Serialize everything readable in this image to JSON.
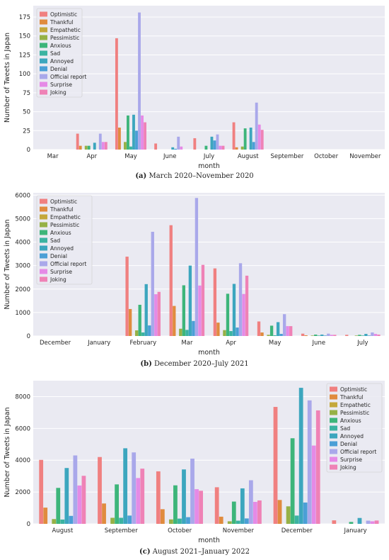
{
  "captions": [
    {
      "label": "(a)",
      "text": "March 2020–November 2020"
    },
    {
      "label": "(b)",
      "text": "December 2020–July 2021"
    },
    {
      "label": "(c)",
      "text": "August 2021–January 2022"
    }
  ],
  "colors": [
    "#f08080",
    "#e08b3e",
    "#c4a83b",
    "#96b146",
    "#3db57a",
    "#3bb3a1",
    "#3ca6be",
    "#4b9fd6",
    "#a9a8ea",
    "#e58ae6",
    "#ef82b6"
  ],
  "chart_data": [
    {
      "type": "bar",
      "xlabel": "month",
      "ylabel": "Number of Tweets in Japan",
      "ylim": [
        0,
        190
      ],
      "yticks": [
        0,
        25,
        50,
        75,
        100,
        125,
        150,
        175
      ],
      "grid": true,
      "legend_position": "top-left",
      "categories": [
        "Mar",
        "Apr",
        "May",
        "June",
        "July",
        "August",
        "September",
        "October",
        "November"
      ],
      "series": [
        {
          "name": "Optimistic",
          "values": [
            0,
            21,
            147,
            8,
            15,
            36,
            0,
            0,
            0
          ]
        },
        {
          "name": "Thankful",
          "values": [
            0,
            5,
            29,
            0,
            0,
            3,
            0,
            0,
            0
          ]
        },
        {
          "name": "Empathetic",
          "values": [
            0,
            0,
            0,
            0,
            0,
            0,
            0,
            0,
            0
          ]
        },
        {
          "name": "Pessimistic",
          "values": [
            0,
            5,
            10,
            0,
            0,
            4,
            0,
            0,
            0
          ]
        },
        {
          "name": "Anxious",
          "values": [
            0,
            5,
            45,
            0,
            5,
            28,
            0,
            0,
            0
          ]
        },
        {
          "name": "Sad",
          "values": [
            0,
            0,
            4,
            0,
            0,
            0,
            0,
            0,
            0
          ]
        },
        {
          "name": "Annoyed",
          "values": [
            0,
            9,
            46,
            3,
            17,
            29,
            0,
            0,
            0
          ]
        },
        {
          "name": "Denial",
          "values": [
            0,
            0,
            25,
            1,
            12,
            10,
            0,
            0,
            0
          ]
        },
        {
          "name": "Official report",
          "values": [
            0,
            21,
            181,
            17,
            20,
            62,
            0,
            0,
            0
          ]
        },
        {
          "name": "Surprise",
          "values": [
            0,
            10,
            45,
            4,
            5,
            33,
            0,
            0,
            0
          ]
        },
        {
          "name": "Joking",
          "values": [
            0,
            10,
            36,
            0,
            5,
            26,
            0,
            0,
            0
          ]
        }
      ]
    },
    {
      "type": "bar",
      "xlabel": "month",
      "ylabel": "Number of Tweets in Japan",
      "ylim": [
        0,
        6100
      ],
      "yticks": [
        0,
        1000,
        2000,
        3000,
        4000,
        5000,
        6000
      ],
      "grid": true,
      "legend_position": "top-left",
      "categories": [
        "December",
        "January",
        "February",
        "Mar",
        "Apr",
        "May",
        "June",
        "July"
      ],
      "series": [
        {
          "name": "Optimistic",
          "values": [
            0,
            0,
            3380,
            4720,
            2880,
            620,
            100,
            50
          ]
        },
        {
          "name": "Thankful",
          "values": [
            0,
            0,
            1150,
            1280,
            570,
            150,
            30,
            0
          ]
        },
        {
          "name": "Empathetic",
          "values": [
            0,
            0,
            0,
            0,
            0,
            0,
            0,
            0
          ]
        },
        {
          "name": "Pessimistic",
          "values": [
            0,
            0,
            240,
            310,
            250,
            50,
            20,
            20
          ]
        },
        {
          "name": "Anxious",
          "values": [
            0,
            0,
            1330,
            2160,
            1800,
            440,
            60,
            50
          ]
        },
        {
          "name": "Sad",
          "values": [
            0,
            0,
            150,
            260,
            210,
            30,
            20,
            20
          ]
        },
        {
          "name": "Annoyed",
          "values": [
            0,
            0,
            2210,
            3000,
            2220,
            590,
            60,
            90
          ]
        },
        {
          "name": "Denial",
          "values": [
            0,
            0,
            450,
            640,
            360,
            90,
            20,
            20
          ]
        },
        {
          "name": "Official report",
          "values": [
            0,
            0,
            4440,
            5880,
            3100,
            930,
            100,
            150
          ]
        },
        {
          "name": "Surprise",
          "values": [
            0,
            0,
            1780,
            2150,
            1790,
            420,
            50,
            90
          ]
        },
        {
          "name": "Joking",
          "values": [
            0,
            0,
            1880,
            3030,
            2570,
            420,
            50,
            60
          ]
        }
      ]
    },
    {
      "type": "bar",
      "xlabel": "month",
      "ylabel": "Number of Tweets in Japan",
      "ylim": [
        0,
        9000
      ],
      "yticks": [
        0,
        2000,
        4000,
        6000,
        8000
      ],
      "grid": true,
      "legend_position": "top-right",
      "categories": [
        "August",
        "September",
        "October",
        "November",
        "December",
        "January"
      ],
      "series": [
        {
          "name": "Optimistic",
          "values": [
            4020,
            4200,
            3300,
            2300,
            7350,
            220
          ]
        },
        {
          "name": "Thankful",
          "values": [
            1020,
            1280,
            920,
            450,
            1500,
            0
          ]
        },
        {
          "name": "Empathetic",
          "values": [
            0,
            0,
            0,
            0,
            0,
            0
          ]
        },
        {
          "name": "Pessimistic",
          "values": [
            300,
            380,
            280,
            160,
            1100,
            0
          ]
        },
        {
          "name": "Anxious",
          "values": [
            2260,
            2480,
            2420,
            1400,
            5380,
            120
          ]
        },
        {
          "name": "Sad",
          "values": [
            270,
            380,
            330,
            200,
            520,
            0
          ]
        },
        {
          "name": "Annoyed",
          "values": [
            3510,
            4750,
            3420,
            2230,
            8550,
            370
          ]
        },
        {
          "name": "Denial",
          "values": [
            500,
            520,
            420,
            340,
            1340,
            0
          ]
        },
        {
          "name": "Official report",
          "values": [
            4300,
            4490,
            4100,
            2740,
            7760,
            200
          ]
        },
        {
          "name": "Surprise",
          "values": [
            2410,
            2880,
            2180,
            1380,
            4920,
            160
          ]
        },
        {
          "name": "Joking",
          "values": [
            3020,
            3470,
            2080,
            1470,
            7130,
            210
          ]
        }
      ]
    }
  ]
}
